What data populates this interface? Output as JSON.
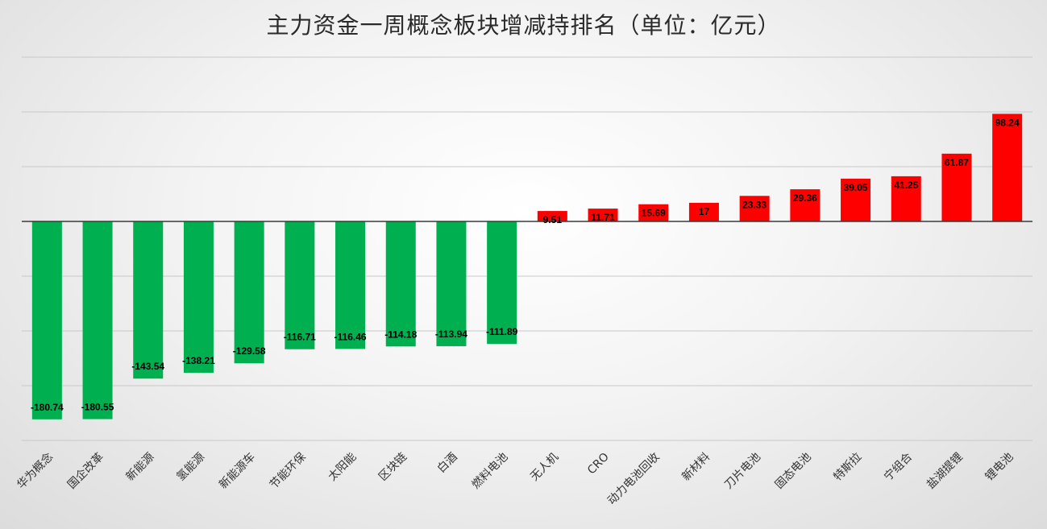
{
  "title": "主力资金一周概念板块增减持排名（单位：亿元）",
  "chart_data": {
    "type": "bar",
    "title": "主力资金一周概念板块增减持排名（单位：亿元）",
    "xlabel": "",
    "ylabel": "",
    "categories": [
      "华为概念",
      "国企改革",
      "新能源",
      "氢能源",
      "新能源车",
      "节能环保",
      "太阳能",
      "区块链",
      "白酒",
      "燃料电池",
      "无人机",
      "CRO",
      "动力电池回收",
      "新材料",
      "刀片电池",
      "固态电池",
      "特斯拉",
      "宁组合",
      "盐湖提锂",
      "锂电池"
    ],
    "values": [
      -180.74,
      -180.55,
      -143.54,
      -138.21,
      -129.58,
      -116.71,
      -116.46,
      -114.18,
      -113.94,
      -111.89,
      9.51,
      11.71,
      15.69,
      17,
      23.33,
      29.36,
      39.05,
      41.25,
      61.87,
      98.24
    ],
    "value_labels": [
      "-180.74",
      "-180.55",
      "-143.54",
      "-138.21",
      "-129.58",
      "-116.71",
      "-116.46",
      "-114.18",
      "-113.94",
      "-111.89",
      "9.51",
      "11.71",
      "15.69",
      "17",
      "23.33",
      "29.36",
      "39.05",
      "41.25",
      "61.87",
      "98.24"
    ],
    "ylim": [
      -200,
      150
    ],
    "grid_step": 50,
    "grid": true,
    "legend": "none",
    "colors": {
      "positive": "#ff0000",
      "negative": "#00b050"
    }
  }
}
